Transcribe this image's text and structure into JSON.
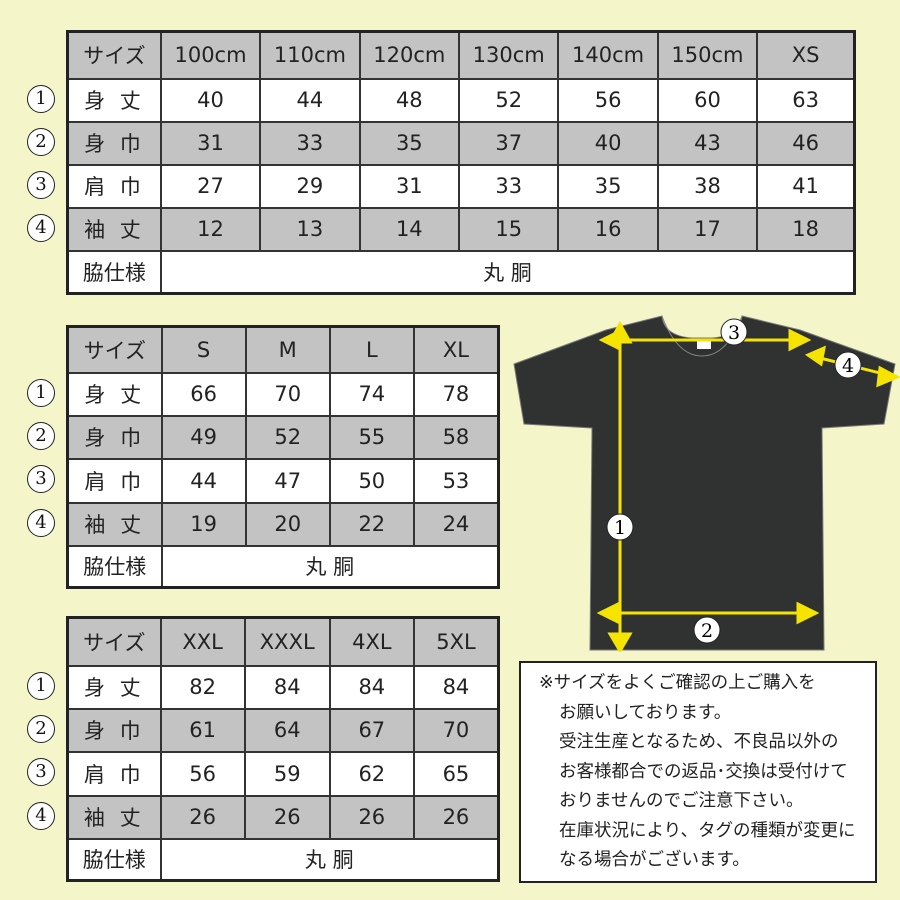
{
  "tables": [
    {
      "header": [
        "サイズ",
        "100cm",
        "110cm",
        "120cm",
        "130cm",
        "140cm",
        "150cm",
        "XS"
      ],
      "rows": [
        {
          "marker": "1",
          "label": "身 丈",
          "values": [
            "40",
            "44",
            "48",
            "52",
            "56",
            "60",
            "63"
          ]
        },
        {
          "marker": "2",
          "label": "身 巾",
          "values": [
            "31",
            "33",
            "35",
            "37",
            "40",
            "43",
            "46"
          ]
        },
        {
          "marker": "3",
          "label": "肩 巾",
          "values": [
            "27",
            "29",
            "31",
            "33",
            "35",
            "38",
            "41"
          ]
        },
        {
          "marker": "4",
          "label": "袖 丈",
          "values": [
            "12",
            "13",
            "14",
            "15",
            "16",
            "17",
            "18"
          ]
        }
      ],
      "side_label": "脇仕様",
      "side_value": "丸 胴"
    },
    {
      "header": [
        "サイズ",
        "S",
        "M",
        "L",
        "XL"
      ],
      "rows": [
        {
          "marker": "1",
          "label": "身 丈",
          "values": [
            "66",
            "70",
            "74",
            "78"
          ]
        },
        {
          "marker": "2",
          "label": "身 巾",
          "values": [
            "49",
            "52",
            "55",
            "58"
          ]
        },
        {
          "marker": "3",
          "label": "肩 巾",
          "values": [
            "44",
            "47",
            "50",
            "53"
          ]
        },
        {
          "marker": "4",
          "label": "袖 丈",
          "values": [
            "19",
            "20",
            "22",
            "24"
          ]
        }
      ],
      "side_label": "脇仕様",
      "side_value": "丸 胴"
    },
    {
      "header": [
        "サイズ",
        "XXL",
        "XXXL",
        "4XL",
        "5XL"
      ],
      "rows": [
        {
          "marker": "1",
          "label": "身 丈",
          "values": [
            "82",
            "84",
            "84",
            "84"
          ]
        },
        {
          "marker": "2",
          "label": "身 巾",
          "values": [
            "61",
            "64",
            "67",
            "70"
          ]
        },
        {
          "marker": "3",
          "label": "肩 巾",
          "values": [
            "56",
            "59",
            "62",
            "65"
          ]
        },
        {
          "marker": "4",
          "label": "袖 丈",
          "values": [
            "26",
            "26",
            "26",
            "26"
          ]
        }
      ],
      "side_label": "脇仕様",
      "side_value": "丸 胴"
    }
  ],
  "diagram": {
    "markers": [
      "1",
      "2",
      "3",
      "4"
    ],
    "shirt_color": "#2f3230",
    "arrow_color": "#f5e400"
  },
  "notes": [
    "※サイズをよくご確認の上ご購入を",
    "お願いしております。",
    "受注生産となるため、不良品以外の",
    "お客様都合での返品･交換は受付けて",
    "おりませんのでご注意下さい。",
    "在庫状況により、タグの種類が変更に",
    "なる場合がございます。"
  ],
  "colors": {
    "background": "#f4f5c9",
    "gray_row": "#c3c3c3"
  }
}
